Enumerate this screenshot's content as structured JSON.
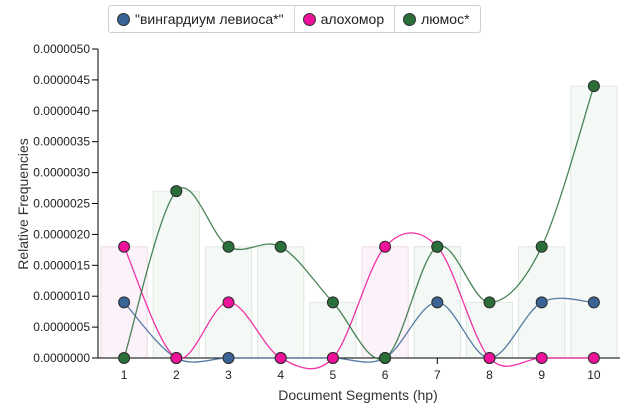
{
  "chart_data": {
    "type": "line",
    "xlabel": "Document Segments (hp)",
    "ylabel": "Relative Frequencies",
    "x": [
      1,
      2,
      3,
      4,
      5,
      6,
      7,
      8,
      9,
      10
    ],
    "x_tick_labels": [
      "1",
      "2",
      "3",
      "4",
      "5",
      "6",
      "7",
      "8",
      "9",
      "10"
    ],
    "ylim": [
      0,
      5e-06
    ],
    "y_tick_labels": [
      "0.0000000",
      "0.0000005",
      "0.0000010",
      "0.0000015",
      "0.0000020",
      "0.0000025",
      "0.0000030",
      "0.0000035",
      "0.0000040",
      "0.0000045",
      "0.0000050"
    ],
    "y_ticks": [
      0,
      5e-07,
      1e-06,
      1.5e-06,
      2e-06,
      2.5e-06,
      3e-06,
      3.5e-06,
      4e-06,
      4.5e-06,
      5e-06
    ],
    "legend_position": "top",
    "series": [
      {
        "name": "\"вингардиум левиоса*\"",
        "color": "#3b6496",
        "values": [
          9e-07,
          0,
          0,
          0,
          0,
          0,
          9e-07,
          0,
          9e-07,
          9e-07
        ]
      },
      {
        "name": "алохомор",
        "color": "#ee1199",
        "values": [
          1.8e-06,
          0,
          9e-07,
          0,
          0,
          1.8e-06,
          1.8e-06,
          0,
          0,
          0
        ]
      },
      {
        "name": "люмос*",
        "color": "#2a6e3a",
        "values": [
          0,
          2.7e-06,
          1.8e-06,
          1.8e-06,
          9e-07,
          0,
          1.8e-06,
          9e-07,
          1.8e-06,
          4.4e-06
        ]
      }
    ]
  }
}
